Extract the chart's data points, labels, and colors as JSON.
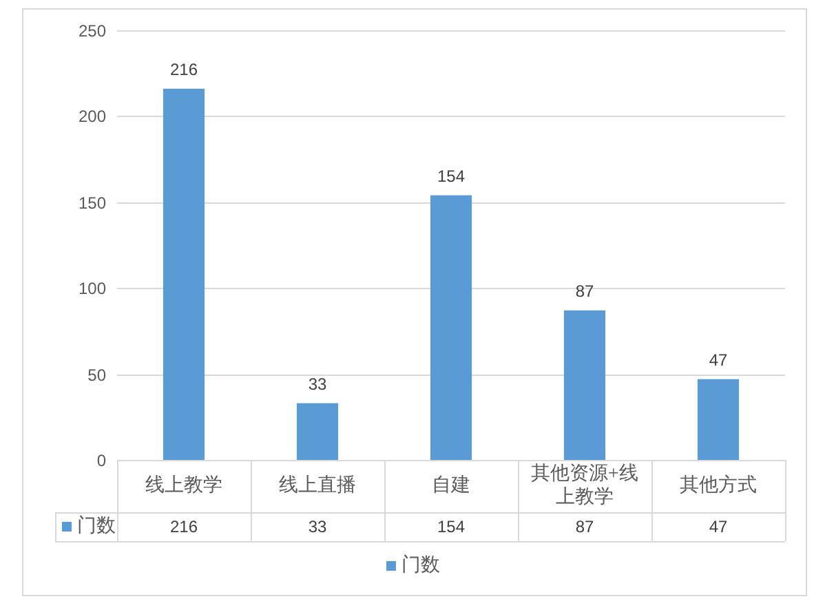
{
  "chart_data": {
    "type": "bar",
    "categories": [
      "线上教学",
      "线上直播",
      "自建",
      "其他资源+线上教学",
      "其他方式"
    ],
    "series": [
      {
        "name": "门数",
        "color": "#5b9bd5",
        "values": [
          216,
          33,
          154,
          87,
          47
        ]
      }
    ],
    "ylim": [
      0,
      250
    ],
    "yticks": [
      0,
      50,
      100,
      150,
      200,
      250
    ],
    "grid": "y",
    "legend": "bottom",
    "data_labels": true,
    "annotations": [
      "216",
      "33",
      "154",
      "87",
      "47"
    ]
  }
}
